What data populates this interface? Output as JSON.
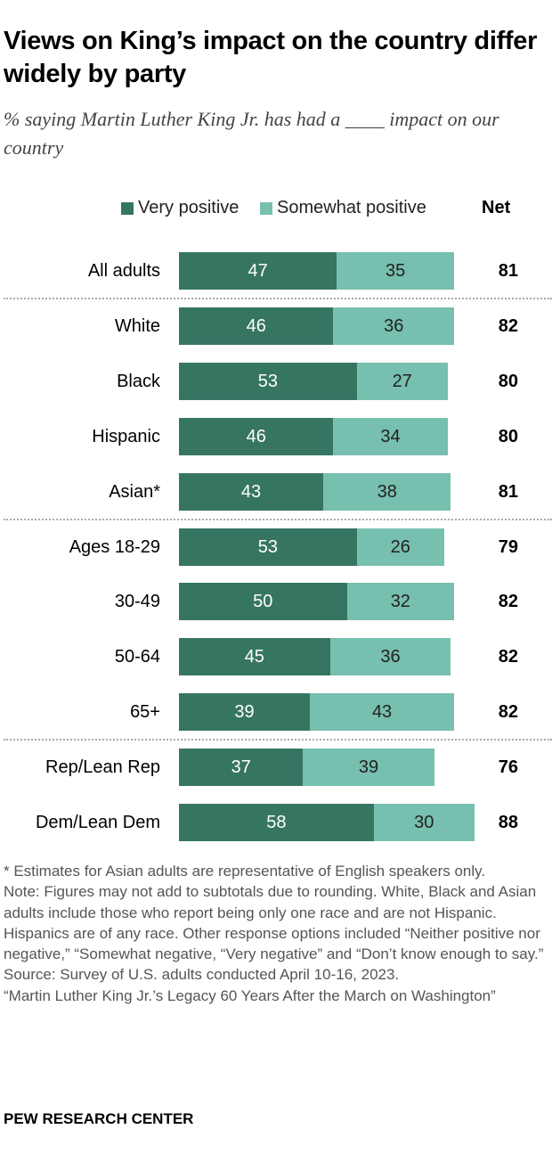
{
  "title": "Views on King’s impact on the country differ widely by party",
  "subtitle": "% saying Martin Luther King Jr. has had a ____ impact on our country",
  "colors": {
    "very_positive": "#377563",
    "somewhat_positive": "#77bfae"
  },
  "chart_data": {
    "type": "bar",
    "orientation": "horizontal-stacked",
    "legend": [
      "Very positive",
      "Somewhat positive"
    ],
    "net_header": "Net",
    "categories": [
      "All adults",
      "White",
      "Black",
      "Hispanic",
      "Asian*",
      "Ages 18-29",
      "30-49",
      "50-64",
      "65+",
      "Rep/Lean Rep",
      "Dem/Lean Dem"
    ],
    "series": [
      {
        "name": "Very positive",
        "values": [
          47,
          46,
          53,
          46,
          43,
          53,
          50,
          45,
          39,
          37,
          58
        ]
      },
      {
        "name": "Somewhat positive",
        "values": [
          35,
          36,
          27,
          34,
          38,
          26,
          32,
          36,
          43,
          39,
          30
        ]
      }
    ],
    "net": [
      81,
      82,
      80,
      80,
      81,
      79,
      82,
      82,
      82,
      76,
      88
    ],
    "group_breaks_after": [
      0,
      4,
      8
    ]
  },
  "notes": [
    "* Estimates for Asian adults are representative of English speakers only.",
    "Note: Figures may not add to subtotals due to rounding. White, Black and Asian adults include those who report being only one race and are not Hispanic. Hispanics are of any race. Other response options included “Neither positive nor negative,” “Somewhat negative, “Very negative” and “Don’t know enough to say.”",
    "Source: Survey of U.S. adults conducted April 10-16, 2023.",
    "“Martin Luther King Jr.’s Legacy 60 Years After the March on Washington”"
  ],
  "brand": "PEW RESEARCH CENTER"
}
